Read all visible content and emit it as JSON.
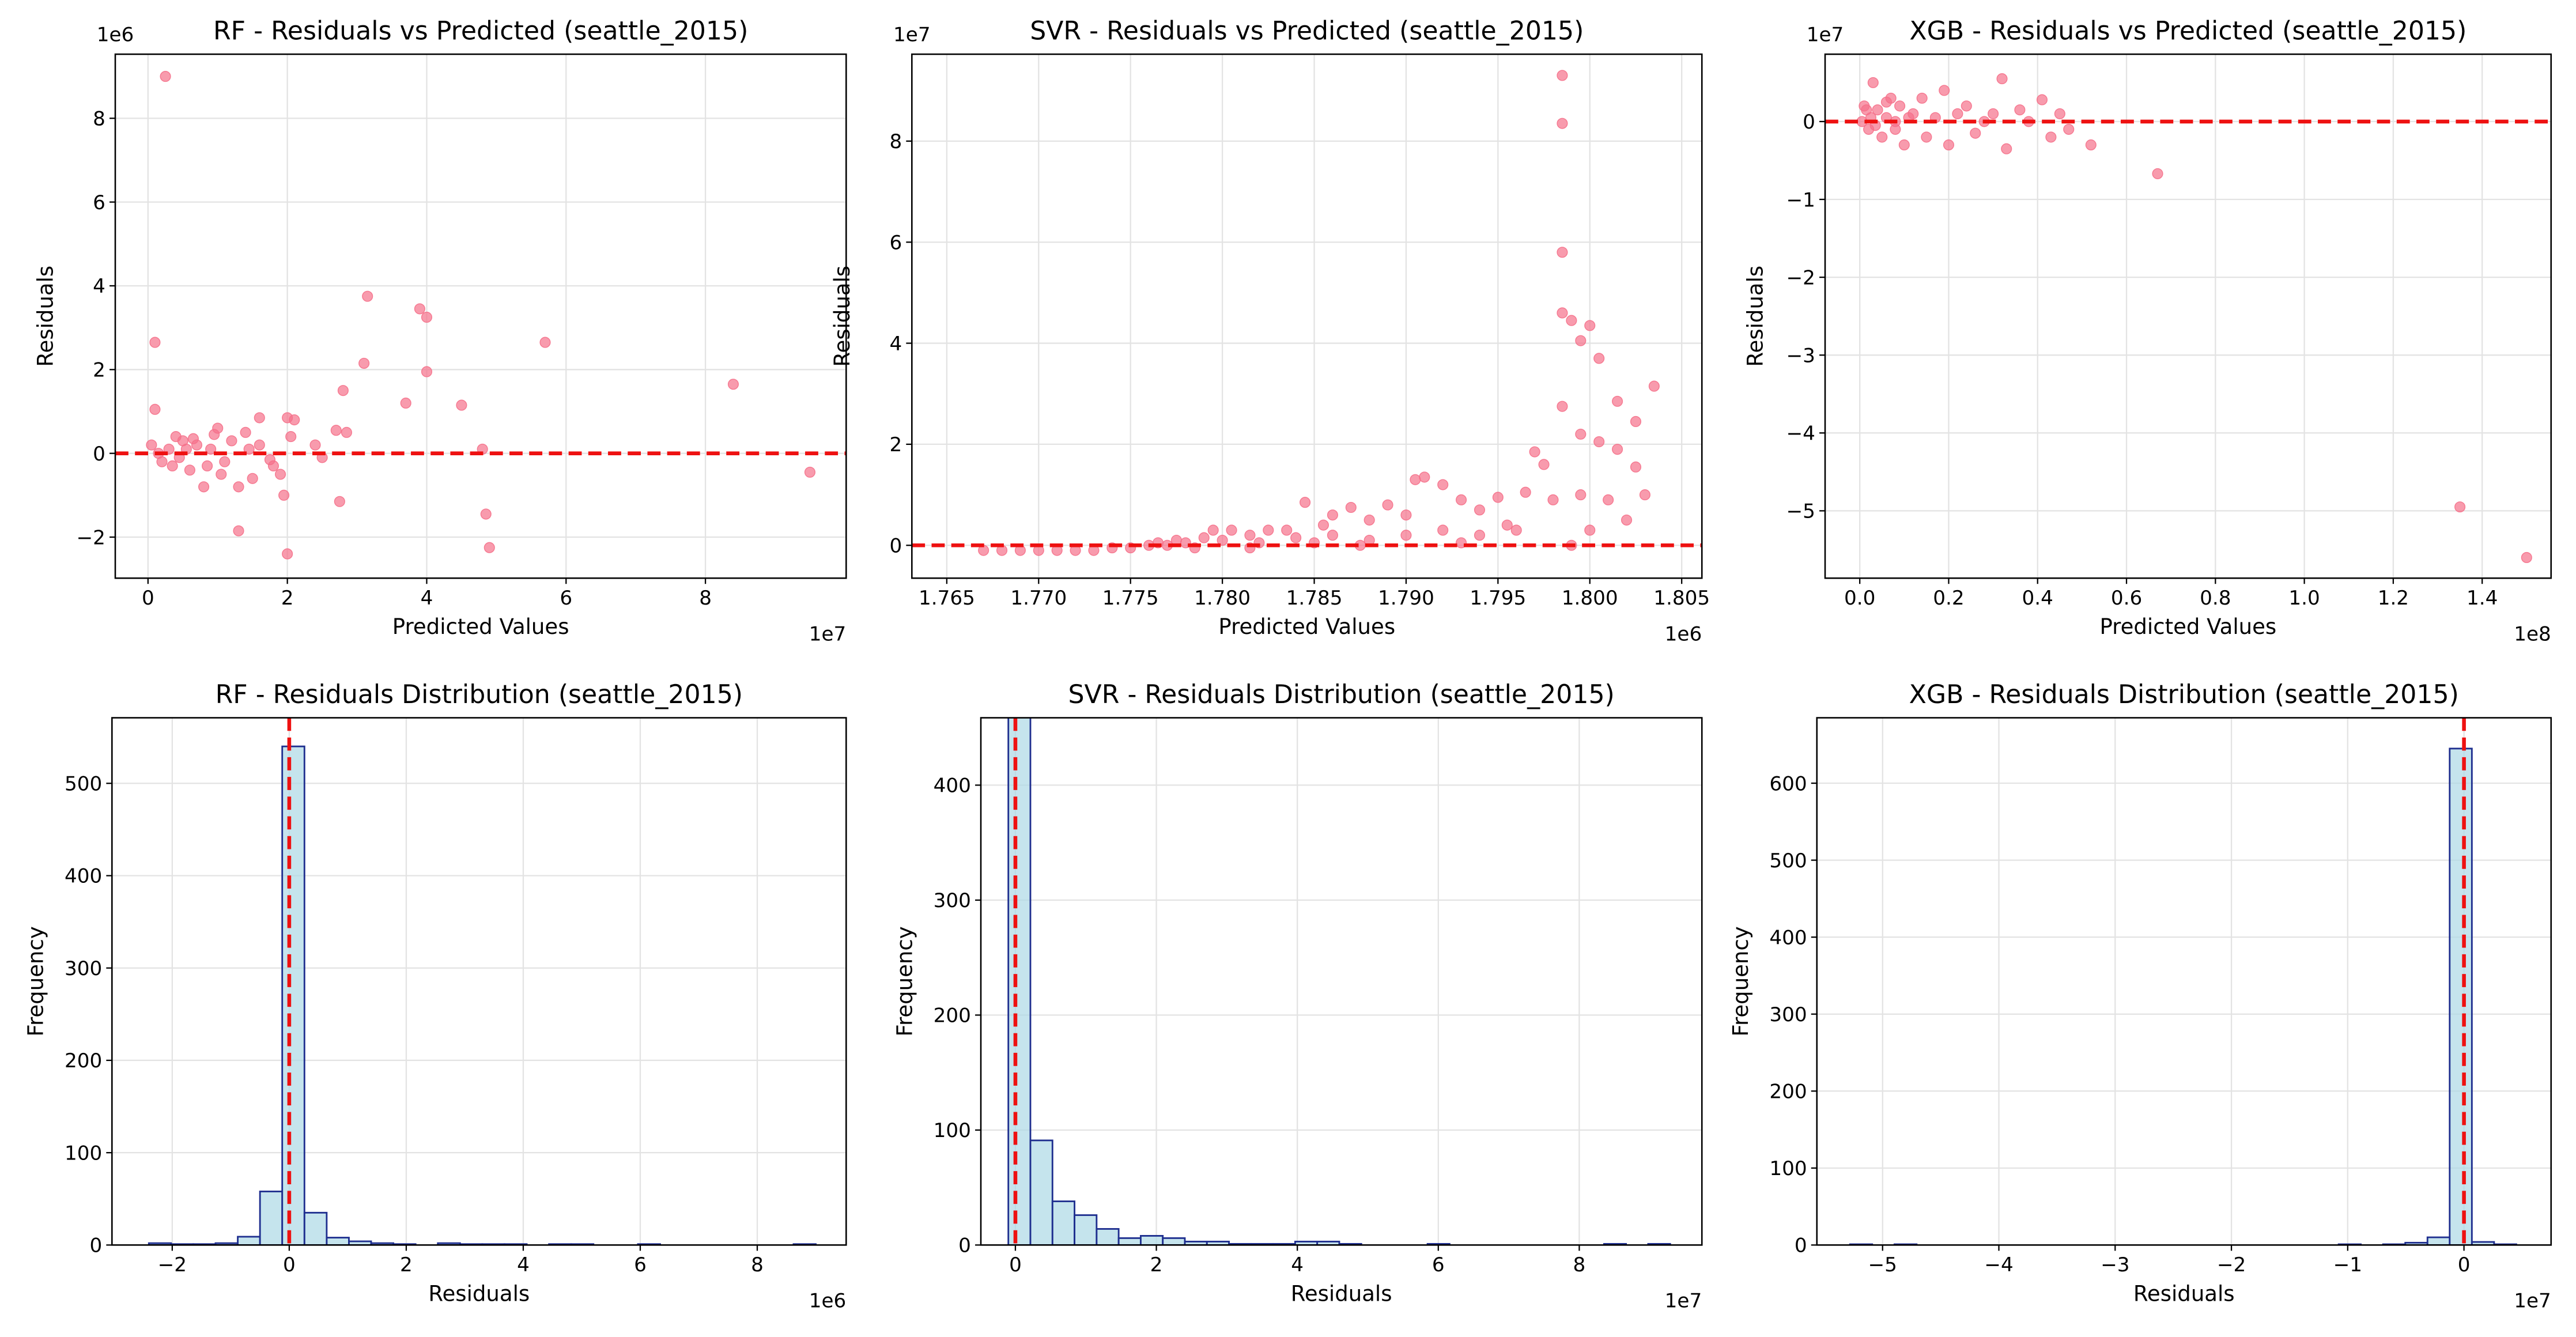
{
  "chart_data": [
    {
      "type": "scatter",
      "title": "RF - Residuals vs Predicted (seattle_2015)",
      "x_label": "Predicted Values",
      "y_label": "Residuals",
      "x_offset": "1e7",
      "y_offset": "1e6",
      "color": "#f5708a",
      "hline": 0,
      "grid": true,
      "xlim": [
        -0.47,
        10.02
      ],
      "ylim": [
        -2.98,
        9.53
      ],
      "xticks": [
        0,
        2,
        4,
        6,
        8
      ],
      "yticks": [
        {
          "value": -2,
          "label": "−2"
        },
        0,
        2,
        4,
        6,
        8
      ],
      "x": [
        0.25,
        0.1,
        0.1,
        3.15,
        3.9,
        4.0,
        3.1,
        4.0,
        5.7,
        3.7,
        4.5,
        2.8,
        8.4,
        9.5,
        4.85,
        4.9,
        2.0,
        1.3,
        2.75,
        4.8,
        2.0,
        2.1,
        1.6,
        2.4,
        2.5,
        2.7,
        2.85,
        1.4,
        1.8,
        1.5,
        1.3,
        1.0,
        0.8,
        1.2,
        1.1,
        0.5,
        0.6,
        0.3,
        0.2,
        0.4,
        0.7,
        0.9,
        0.35,
        0.55,
        0.15,
        0.05,
        0.45,
        0.65,
        0.85,
        0.95,
        1.05,
        1.6,
        1.75,
        1.9,
        2.05,
        1.95,
        1.45
      ],
      "values": [
        9.0,
        2.65,
        1.05,
        3.75,
        3.45,
        3.25,
        2.15,
        1.95,
        2.65,
        1.2,
        1.15,
        1.5,
        1.65,
        -0.45,
        -1.45,
        -2.25,
        -2.4,
        -1.85,
        -1.15,
        0.1,
        0.85,
        0.8,
        0.85,
        0.2,
        -0.1,
        0.55,
        0.5,
        0.5,
        -0.3,
        -0.6,
        -0.8,
        0.6,
        -0.8,
        0.3,
        -0.2,
        0.3,
        -0.4,
        0.1,
        -0.2,
        0.4,
        0.2,
        0.1,
        -0.3,
        0.1,
        0.0,
        0.2,
        -0.1,
        0.35,
        -0.3,
        0.45,
        -0.5,
        0.2,
        -0.15,
        -0.5,
        0.4,
        -1.0,
        0.1
      ]
    },
    {
      "type": "scatter",
      "title": "SVR - Residuals vs Predicted (seattle_2015)",
      "x_label": "Predicted Values",
      "y_label": "Residuals",
      "x_offset": "1e6",
      "y_offset": "1e7",
      "color": "#f5708a",
      "hline": 0,
      "grid": true,
      "xlim": [
        1.7631,
        1.8061
      ],
      "ylim": [
        -0.65,
        9.72
      ],
      "xticks": [
        1.765,
        {
          "value": 1.77,
          "label": "1.770"
        },
        1.775,
        {
          "value": 1.78,
          "label": "1.780"
        },
        1.785,
        {
          "value": 1.79,
          "label": "1.790"
        },
        1.795,
        {
          "value": 1.8,
          "label": "1.800"
        },
        1.805
      ],
      "yticks": [
        0,
        2,
        4,
        6,
        8
      ],
      "x": [
        1.7985,
        1.7985,
        1.7985,
        1.7985,
        1.799,
        1.8,
        1.7995,
        1.8005,
        1.8035,
        1.8015,
        1.8025,
        1.7985,
        1.7995,
        1.8005,
        1.8015,
        1.8025,
        1.803,
        1.797,
        1.7975,
        1.7965,
        1.7995,
        1.801,
        1.802,
        1.8,
        1.799,
        1.798,
        1.795,
        1.7955,
        1.794,
        1.793,
        1.792,
        1.791,
        1.7905,
        1.79,
        1.789,
        1.788,
        1.787,
        1.786,
        1.7855,
        1.7845,
        1.7835,
        1.7825,
        1.7815,
        1.78,
        1.779,
        1.778,
        1.777,
        1.776,
        1.775,
        1.774,
        1.773,
        1.772,
        1.771,
        1.77,
        1.769,
        1.768,
        1.767,
        1.7775,
        1.7785,
        1.7805,
        1.782,
        1.784,
        1.786,
        1.788,
        1.79,
        1.792,
        1.794,
        1.796,
        1.793,
        1.7875,
        1.785,
        1.7815,
        1.7795,
        1.7765
      ],
      "values": [
        9.3,
        8.35,
        5.8,
        4.6,
        4.45,
        4.35,
        4.05,
        3.7,
        3.15,
        2.85,
        2.45,
        2.75,
        2.2,
        2.05,
        1.9,
        1.55,
        1.0,
        1.85,
        1.6,
        1.05,
        1.0,
        0.9,
        0.5,
        0.3,
        0.0,
        0.9,
        0.95,
        0.4,
        0.7,
        0.9,
        1.2,
        1.35,
        1.3,
        0.6,
        0.8,
        0.5,
        0.75,
        0.6,
        0.4,
        0.85,
        0.3,
        0.3,
        0.2,
        0.1,
        0.15,
        0.05,
        0.0,
        0.0,
        -0.05,
        -0.05,
        -0.1,
        -0.1,
        -0.1,
        -0.1,
        -0.1,
        -0.1,
        -0.1,
        0.1,
        -0.05,
        0.3,
        0.05,
        0.15,
        0.2,
        0.1,
        0.2,
        0.3,
        0.2,
        0.3,
        0.05,
        0.0,
        0.05,
        -0.05,
        0.3,
        0.05
      ]
    },
    {
      "type": "scatter",
      "title": "XGB - Residuals vs Predicted (seattle_2015)",
      "x_label": "Predicted Values",
      "y_label": "Residuals",
      "x_offset": "1e8",
      "y_offset": "1e7",
      "color": "#f5708a",
      "hline": 0,
      "grid": true,
      "xlim": [
        -0.078,
        1.555
      ],
      "ylim": [
        -5.865,
        0.865
      ],
      "xticks": [
        {
          "value": 0,
          "label": "0.0"
        },
        0.2,
        0.4,
        0.6,
        0.8,
        {
          "value": 1,
          "label": "1.0"
        },
        1.2,
        1.4
      ],
      "yticks": [
        {
          "value": -5,
          "label": "−5"
        },
        {
          "value": -4,
          "label": "−4"
        },
        {
          "value": -3,
          "label": "−3"
        },
        {
          "value": -2,
          "label": "−2"
        },
        {
          "value": -1,
          "label": "−1"
        },
        0
      ],
      "x": [
        0.01,
        0.02,
        0.03,
        0.04,
        0.05,
        0.06,
        0.07,
        0.08,
        0.09,
        0.1,
        0.12,
        0.14,
        0.15,
        0.17,
        0.19,
        0.2,
        0.22,
        0.24,
        0.26,
        0.28,
        0.3,
        0.32,
        0.33,
        0.36,
        0.38,
        0.41,
        0.43,
        0.45,
        0.47,
        0.52,
        0.67,
        1.35,
        1.5,
        0.005,
        0.015,
        0.06,
        0.08,
        0.11,
        0.035,
        0.025
      ],
      "values": [
        0.2,
        -0.1,
        0.5,
        0.15,
        -0.2,
        0.05,
        0.3,
        0.0,
        0.2,
        -0.3,
        0.1,
        0.3,
        -0.2,
        0.05,
        0.4,
        -0.3,
        0.1,
        0.2,
        -0.15,
        0.0,
        0.1,
        0.55,
        -0.35,
        0.15,
        0.0,
        0.28,
        -0.2,
        0.1,
        -0.1,
        -0.3,
        -0.67,
        -4.95,
        -5.6,
        0.0,
        0.15,
        0.25,
        -0.1,
        0.05,
        -0.05,
        0.05
      ]
    },
    {
      "type": "histogram",
      "title": "RF - Residuals Distribution (seattle_2015)",
      "x_label": "Residuals",
      "y_label": "Frequency",
      "x_offset": "1e6",
      "color": "#add8e6",
      "edgecolor": "#1f2f8f",
      "vline": 0,
      "grid": true,
      "xlim": [
        -3.03,
        9.52
      ],
      "ylim": [
        0,
        571
      ],
      "xticks": [
        {
          "value": -2,
          "label": "−2"
        },
        0,
        2,
        4,
        6,
        8
      ],
      "yticks": [
        0,
        100,
        200,
        300,
        400,
        500
      ],
      "bins": [
        -2.4,
        -2.02,
        -1.64,
        -1.26,
        -0.88,
        -0.5,
        -0.12,
        0.26,
        0.64,
        1.02,
        1.4,
        1.78,
        2.16,
        2.54,
        2.92,
        3.3,
        3.68,
        4.06,
        4.44,
        4.82,
        5.2,
        5.58,
        5.96,
        6.34,
        6.72,
        7.1,
        7.48,
        7.86,
        8.24,
        8.62,
        9.0
      ],
      "values": [
        2,
        1,
        1,
        2,
        9,
        58,
        540,
        35,
        8,
        4,
        2,
        1,
        0,
        2,
        1,
        1,
        1,
        0,
        1,
        1,
        0,
        0,
        1,
        0,
        0,
        0,
        0,
        0,
        0,
        1
      ]
    },
    {
      "type": "histogram",
      "title": "SVR - Residuals Distribution (seattle_2015)",
      "x_label": "Residuals",
      "y_label": "Frequency",
      "x_offset": "1e7",
      "color": "#add8e6",
      "edgecolor": "#1f2f8f",
      "vline": 0,
      "grid": true,
      "xlim": [
        -0.49,
        9.74
      ],
      "ylim": [
        0,
        458.6
      ],
      "xticks": [
        0,
        2,
        4,
        6,
        8
      ],
      "yticks": [
        0,
        100,
        200,
        300,
        400
      ],
      "bins": [
        -0.1,
        0.213,
        0.526,
        0.839,
        1.152,
        1.465,
        1.778,
        2.091,
        2.404,
        2.717,
        3.03,
        3.343,
        3.656,
        3.969,
        4.282,
        4.595,
        4.908,
        5.221,
        5.534,
        5.847,
        6.16,
        6.473,
        6.786,
        7.099,
        7.412,
        7.725,
        8.038,
        8.351,
        8.664,
        8.977,
        9.29
      ],
      "values": [
        465,
        91,
        38,
        26,
        14,
        6,
        8,
        6,
        3,
        3,
        1,
        1,
        1,
        3,
        3,
        1,
        0,
        0,
        0,
        1,
        0,
        0,
        0,
        0,
        0,
        0,
        0,
        1,
        0,
        1
      ]
    },
    {
      "type": "histogram",
      "title": "XGB - Residuals Distribution (seattle_2015)",
      "x_label": "Residuals",
      "y_label": "Frequency",
      "x_offset": "1e7",
      "color": "#add8e6",
      "edgecolor": "#1f2f8f",
      "vline": 0,
      "grid": true,
      "xlim": [
        -5.565,
        0.749
      ],
      "ylim": [
        0,
        685
      ],
      "xticks": [
        {
          "value": -5,
          "label": "−5"
        },
        {
          "value": -4,
          "label": "−4"
        },
        {
          "value": -3,
          "label": "−3"
        },
        {
          "value": -2,
          "label": "−2"
        },
        {
          "value": -1,
          "label": "−1"
        },
        0
      ],
      "yticks": [
        0,
        100,
        200,
        300,
        400,
        500,
        600
      ],
      "bins": [
        -5.28,
        -5.089,
        -4.898,
        -4.707,
        -4.516,
        -4.325,
        -4.134,
        -3.943,
        -3.752,
        -3.561,
        -3.37,
        -3.179,
        -2.988,
        -2.797,
        -2.606,
        -2.415,
        -2.224,
        -2.033,
        -1.842,
        -1.651,
        -1.46,
        -1.269,
        -1.078,
        -0.887,
        -0.696,
        -0.505,
        -0.314,
        -0.123,
        0.068,
        0.259,
        0.45
      ],
      "values": [
        1,
        0,
        1,
        0,
        0,
        0,
        0,
        0,
        0,
        0,
        0,
        0,
        0,
        0,
        0,
        0,
        0,
        0,
        0,
        0,
        0,
        0,
        1,
        0,
        1,
        3,
        10,
        645,
        4,
        1
      ]
    }
  ]
}
